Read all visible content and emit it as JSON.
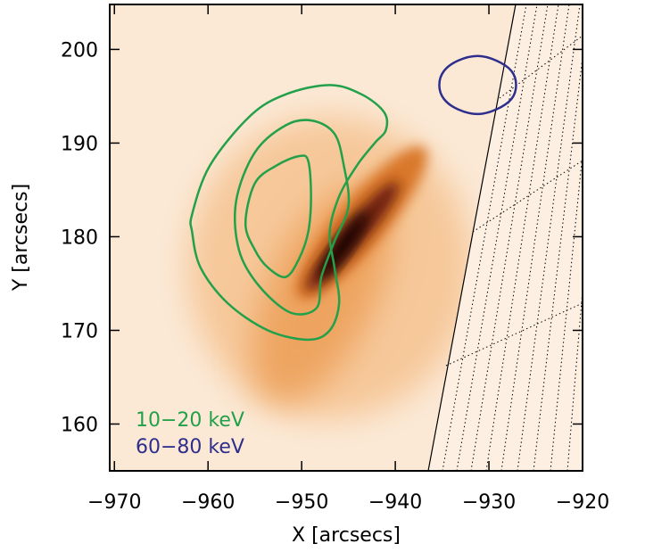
{
  "chart_data": {
    "type": "contour",
    "x_label": "X [arcsecs]",
    "y_label": "Y [arcsecs]",
    "xlim": [
      -970.5,
      -920
    ],
    "ylim": [
      155,
      204.8
    ],
    "xticks": [
      {
        "value": -970,
        "label": "−970"
      },
      {
        "value": -960,
        "label": "−960"
      },
      {
        "value": -950,
        "label": "−950"
      },
      {
        "value": -940,
        "label": "−940"
      },
      {
        "value": -930,
        "label": "−930"
      },
      {
        "value": -920,
        "label": "−920"
      }
    ],
    "yticks": [
      160,
      170,
      180,
      190,
      200
    ],
    "legend": "lower left",
    "series": [
      {
        "name": "10−20 keV",
        "color": "#22a04a",
        "contours": [
          {
            "x": [
              -961.7,
              -959.8,
              -955.5,
              -951.7,
              -947.0,
              -943.6,
              -941.2,
              -941.0,
              -942.2,
              -944.1,
              -946.0,
              -947.0,
              -946.5,
              -946.0,
              -947.0,
              -949.3,
              -953.6,
              -957.9,
              -960.8,
              -961.7
            ],
            "y": [
              182.4,
              187.6,
              192.9,
              195.2,
              196.2,
              195.2,
              193.3,
              191.4,
              190.0,
              187.6,
              184.3,
              180.5,
              176.7,
              172.9,
              170.0,
              169.0,
              170.0,
              172.9,
              176.7,
              180.5
            ]
          },
          {
            "x": [
              -957.0,
              -955.0,
              -951.7,
              -948.9,
              -946.5,
              -945.5,
              -945.0,
              -946.5,
              -947.9,
              -948.4,
              -951.2,
              -954.6,
              -956.7
            ],
            "y": [
              183.8,
              189.0,
              191.9,
              192.4,
              191.0,
              187.6,
              183.3,
              179.5,
              175.7,
              172.4,
              171.9,
              174.8,
              178.6
            ]
          },
          {
            "x": [
              -956.0,
              -955.0,
              -952.7,
              -950.3,
              -949.3,
              -949.0,
              -949.3,
              -950.3,
              -951.7,
              -953.6,
              -955.0
            ],
            "y": [
              181.4,
              185.7,
              187.6,
              188.6,
              188.1,
              184.3,
              180.5,
              177.6,
              175.7,
              176.7,
              178.6
            ]
          }
        ]
      },
      {
        "name": "60−80 keV",
        "color": "#2e2e8c",
        "contours": [
          {
            "x": [
              -927.1,
              -927.6,
              -929.2,
              -931.2,
              -933.3,
              -934.8,
              -935.3,
              -934.8,
              -933.3,
              -931.2,
              -929.2,
              -927.6
            ],
            "y": [
              196.2,
              197.7,
              198.8,
              199.3,
              198.8,
              197.7,
              196.2,
              194.7,
              193.6,
              193.1,
              193.6,
              194.7
            ]
          }
        ]
      }
    ]
  }
}
